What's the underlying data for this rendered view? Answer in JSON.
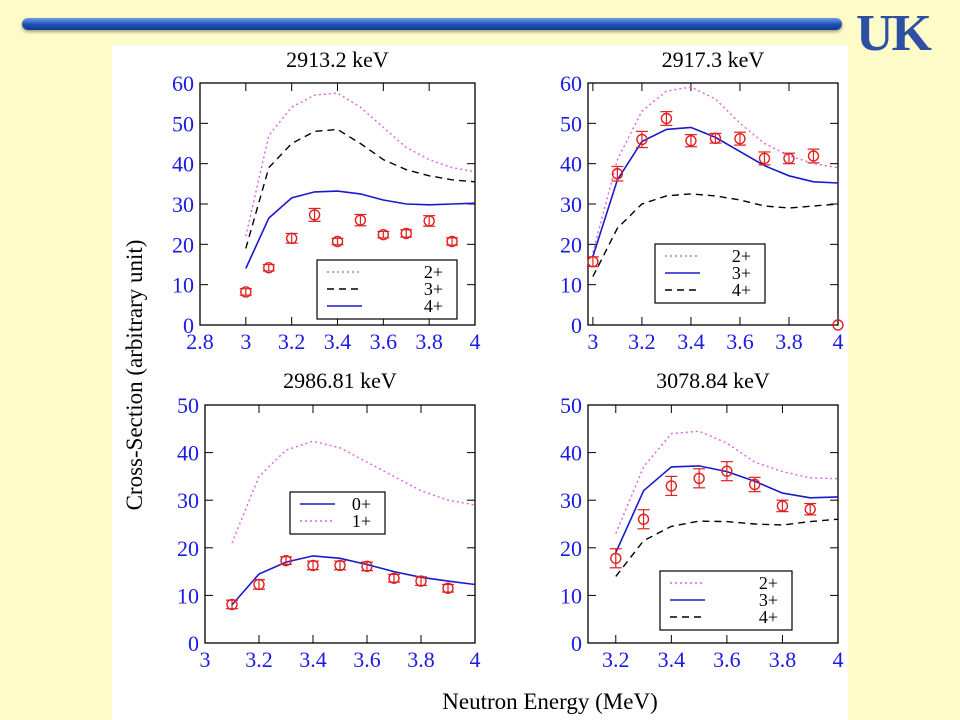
{
  "logo_text": "UK",
  "colors": {
    "background": "#fdfbc8",
    "bar": "#1c4fb6",
    "logo": "#2e4fa3",
    "tick": "#1a1ae6",
    "data_points": "#e02020",
    "line_2plus": "#e060e0",
    "line_3plus": "#000000",
    "line_solid": "#1a1acc"
  },
  "figure": {
    "xlabel": "Neutron Energy (MeV)",
    "ylabel": "Cross-Section (arbitrary unit)"
  },
  "chart_data": [
    {
      "type": "line",
      "title": "2913.2 keV",
      "xlim": [
        2.8,
        4
      ],
      "ylim": [
        0,
        60
      ],
      "xticks": [
        "2.8",
        "3",
        "3.2",
        "3.4",
        "3.6",
        "3.8",
        "4"
      ],
      "xtick_values": [
        2.8,
        3,
        3.2,
        3.4,
        3.6,
        3.8,
        4
      ],
      "yticks": [
        "0",
        "10",
        "20",
        "30",
        "40",
        "50",
        "60"
      ],
      "ytick_values": [
        0,
        10,
        20,
        30,
        40,
        50,
        60
      ],
      "grid": false,
      "legend_position": "bottom-right",
      "series": [
        {
          "name": "2+",
          "style": "dotted",
          "color": "#e060e0",
          "x": [
            3.0,
            3.1,
            3.2,
            3.3,
            3.4,
            3.5,
            3.6,
            3.7,
            3.8,
            3.9,
            4.0
          ],
          "y": [
            22,
            47,
            54,
            57,
            57.5,
            54,
            49,
            44,
            41,
            39,
            38
          ]
        },
        {
          "name": "3+",
          "style": "dashed",
          "color": "#000000",
          "x": [
            3.0,
            3.1,
            3.2,
            3.3,
            3.4,
            3.5,
            3.6,
            3.7,
            3.8,
            3.9,
            4.0
          ],
          "y": [
            19,
            39,
            45,
            48,
            48.5,
            45,
            41,
            38.5,
            37,
            36,
            35.5
          ]
        },
        {
          "name": "4+",
          "style": "solid",
          "color": "#1a1acc",
          "x": [
            3.0,
            3.1,
            3.2,
            3.3,
            3.4,
            3.5,
            3.6,
            3.7,
            3.8,
            3.9,
            4.0
          ],
          "y": [
            14,
            26.5,
            31.5,
            33,
            33.2,
            32.5,
            31,
            30,
            29.8,
            30,
            30.2
          ]
        }
      ],
      "points": {
        "x": [
          3.0,
          3.1,
          3.2,
          3.3,
          3.4,
          3.5,
          3.6,
          3.7,
          3.8,
          3.9
        ],
        "y": [
          8.2,
          14.2,
          21.5,
          27.3,
          20.7,
          26,
          22.4,
          22.7,
          25.8,
          20.7
        ],
        "err": [
          0.8,
          0.8,
          1.2,
          1.6,
          0.8,
          1.4,
          0.8,
          0.9,
          1.3,
          0.9
        ]
      }
    },
    {
      "type": "line",
      "title": "2917.3 keV",
      "xlim": [
        2.98,
        4
      ],
      "ylim": [
        0,
        60
      ],
      "xticks": [
        "3",
        "3.2",
        "3.4",
        "3.6",
        "3.8",
        "4"
      ],
      "xtick_values": [
        3,
        3.2,
        3.4,
        3.6,
        3.8,
        4
      ],
      "yticks": [
        "0",
        "10",
        "20",
        "30",
        "40",
        "50",
        "60"
      ],
      "ytick_values": [
        0,
        10,
        20,
        30,
        40,
        50,
        60
      ],
      "grid": false,
      "legend_position": "bottom-center",
      "series": [
        {
          "name": "2+",
          "style": "dotted",
          "color": "#e060e0",
          "x": [
            3.0,
            3.1,
            3.2,
            3.3,
            3.4,
            3.5,
            3.6,
            3.7,
            3.8,
            3.9,
            4.0
          ],
          "y": [
            18,
            41,
            53,
            58,
            59,
            56,
            50,
            45,
            42,
            40,
            39
          ]
        },
        {
          "name": "3+",
          "style": "solid",
          "color": "#1a1acc",
          "x": [
            3.0,
            3.1,
            3.2,
            3.3,
            3.4,
            3.5,
            3.6,
            3.7,
            3.8,
            3.9,
            4.0
          ],
          "y": [
            17,
            36,
            45.5,
            48.5,
            49,
            46.5,
            43,
            39.5,
            37,
            35.5,
            35.2
          ]
        },
        {
          "name": "4+",
          "style": "dashed",
          "color": "#000000",
          "x": [
            3.0,
            3.1,
            3.2,
            3.3,
            3.4,
            3.5,
            3.6,
            3.7,
            3.8,
            3.9,
            4.0
          ],
          "y": [
            12,
            24,
            30,
            32,
            32.5,
            32,
            31,
            29.5,
            29,
            29.5,
            30
          ]
        }
      ],
      "points": {
        "x": [
          3.0,
          3.1,
          3.2,
          3.3,
          3.4,
          3.5,
          3.6,
          3.7,
          3.8,
          3.9,
          4.0
        ],
        "y": [
          15.7,
          37.5,
          46,
          51.2,
          45.7,
          46.3,
          46.2,
          41.3,
          41.3,
          41.9,
          0
        ],
        "err": [
          1.2,
          1.8,
          2,
          1.7,
          1.5,
          1.2,
          1.6,
          1.6,
          1.3,
          1.7,
          0
        ]
      }
    },
    {
      "type": "line",
      "title": "2986.81 keV",
      "xlim": [
        3,
        4
      ],
      "ylim": [
        0,
        50
      ],
      "xticks": [
        "3",
        "3.2",
        "3.4",
        "3.6",
        "3.8",
        "4"
      ],
      "xtick_values": [
        3,
        3.2,
        3.4,
        3.6,
        3.8,
        4
      ],
      "yticks": [
        "0",
        "10",
        "20",
        "30",
        "40",
        "50"
      ],
      "ytick_values": [
        0,
        10,
        20,
        30,
        40,
        50
      ],
      "grid": false,
      "legend_position": "center",
      "series": [
        {
          "name": "0+",
          "style": "solid",
          "color": "#1a1acc",
          "x": [
            3.1,
            3.2,
            3.3,
            3.4,
            3.5,
            3.6,
            3.7,
            3.8,
            3.9,
            4.0
          ],
          "y": [
            8,
            14.5,
            17,
            18.3,
            17.8,
            16.5,
            15,
            13.8,
            13,
            12.3
          ]
        },
        {
          "name": "1+",
          "style": "dotted",
          "color": "#e060e0",
          "x": [
            3.1,
            3.2,
            3.3,
            3.4,
            3.5,
            3.6,
            3.7,
            3.8,
            3.9,
            4.0
          ],
          "y": [
            21,
            35,
            40.5,
            42.4,
            41,
            38,
            35,
            32,
            30,
            29
          ]
        }
      ],
      "points": {
        "x": [
          3.1,
          3.2,
          3.3,
          3.4,
          3.5,
          3.6,
          3.7,
          3.8,
          3.9
        ],
        "y": [
          8.1,
          12.3,
          17.3,
          16.3,
          16.3,
          16.1,
          13.6,
          13,
          11.5
        ],
        "err": [
          0.9,
          1,
          0.8,
          0.9,
          0.9,
          0.9,
          0.8,
          0.9,
          0.8
        ]
      }
    },
    {
      "type": "line",
      "title": "3078.84 keV",
      "xlim": [
        3.1,
        4
      ],
      "ylim": [
        0,
        50
      ],
      "xticks": [
        "3.2",
        "3.4",
        "3.6",
        "3.8",
        "4"
      ],
      "xtick_values": [
        3.2,
        3.4,
        3.6,
        3.8,
        4
      ],
      "yticks": [
        "0",
        "10",
        "20",
        "30",
        "40",
        "50"
      ],
      "ytick_values": [
        0,
        10,
        20,
        30,
        40,
        50
      ],
      "grid": false,
      "legend_position": "bottom-right",
      "series": [
        {
          "name": "2+",
          "style": "dotted",
          "color": "#e060e0",
          "x": [
            3.2,
            3.3,
            3.4,
            3.5,
            3.6,
            3.7,
            3.8,
            3.9,
            4.0
          ],
          "y": [
            23,
            37,
            44,
            44.5,
            42,
            38,
            36,
            34.7,
            34.5
          ]
        },
        {
          "name": "3+",
          "style": "solid",
          "color": "#1a1acc",
          "x": [
            3.2,
            3.3,
            3.4,
            3.5,
            3.6,
            3.7,
            3.8,
            3.9,
            4.0
          ],
          "y": [
            19,
            32,
            37,
            37.2,
            36,
            34,
            31.5,
            30.5,
            30.7
          ]
        },
        {
          "name": "4+",
          "style": "dashed",
          "color": "#000000",
          "x": [
            3.2,
            3.3,
            3.4,
            3.5,
            3.6,
            3.7,
            3.8,
            3.9,
            4.0
          ],
          "y": [
            14,
            21.5,
            24.5,
            25.6,
            25.5,
            25,
            24.8,
            25.5,
            26
          ]
        }
      ],
      "points": {
        "x": [
          3.2,
          3.3,
          3.4,
          3.5,
          3.6,
          3.7,
          3.8,
          3.9
        ],
        "y": [
          17.8,
          26,
          33,
          34.6,
          36.1,
          33.3,
          28.8,
          28.1
        ],
        "err": [
          2,
          2,
          2,
          2,
          2,
          1.5,
          1.2,
          1.2
        ]
      }
    }
  ]
}
